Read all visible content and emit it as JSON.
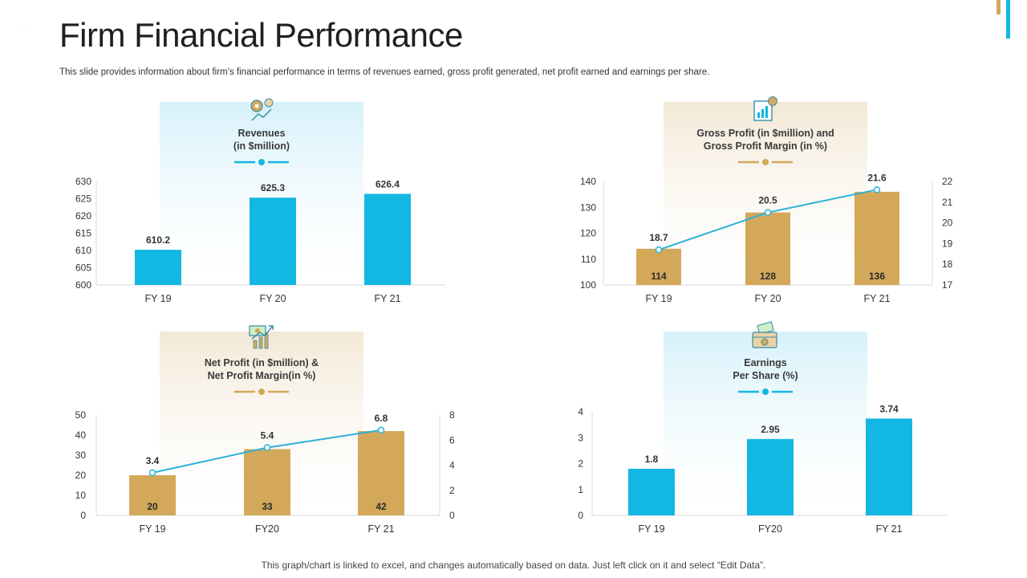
{
  "slide": {
    "title": "Firm Financial Performance",
    "subtitle": "This slide provides information about firm’s financial performance in terms of revenues earned, gross profit generated, net profit earned and earnings per share.",
    "footer": "This graph/chart is linked to excel, and changes automatically based on data. Just left click on it and select “Edit Data”."
  },
  "colors": {
    "blue": "#12b7e2",
    "gold": "#d4a85a",
    "line": "#2bb2d8",
    "axis": "#d9d9d9",
    "text": "#333333",
    "blue_band": "#d6f1fa",
    "gold_band": "#f3e8d6"
  },
  "icons": [
    "revenue-icon",
    "gross-profit-icon",
    "net-profit-icon",
    "earnings-icon"
  ],
  "chart_data": [
    {
      "id": "revenues",
      "type": "bar",
      "title_lines": [
        "Revenues",
        "(in $million)"
      ],
      "categories": [
        "FY 19",
        "FY 20",
        "FY 21"
      ],
      "values": [
        610.2,
        625.3,
        626.4
      ],
      "value_labels": [
        "610.2",
        "625.3",
        "626.4"
      ],
      "ylim": [
        600,
        630
      ],
      "yticks": [
        "600",
        "605",
        "610",
        "615",
        "620",
        "625",
        "630"
      ],
      "bar_color": "blue"
    },
    {
      "id": "gross-profit",
      "type": "bar+line",
      "title_lines": [
        "Gross  Profit (in $million) and",
        "Gross  Profit Margin (in %)"
      ],
      "categories": [
        "FY 19",
        "FY 20",
        "FY 21"
      ],
      "values": [
        114,
        128,
        136
      ],
      "value_labels": [
        "114",
        "128",
        "136"
      ],
      "ylim": [
        100,
        140
      ],
      "yticks": [
        "100",
        "110",
        "120",
        "130",
        "140"
      ],
      "line_values": [
        18.7,
        20.5,
        21.6
      ],
      "line_labels": [
        "18.7",
        "20.5",
        "21.6"
      ],
      "y2lim": [
        17,
        22
      ],
      "y2ticks": [
        "17",
        "18",
        "19",
        "20",
        "21",
        "22"
      ],
      "bar_color": "gold"
    },
    {
      "id": "net-profit",
      "type": "bar+line",
      "title_lines": [
        "Net Profit (in $million) &",
        "Net Profit Margin(in %)"
      ],
      "categories": [
        "FY 19",
        "FY20",
        "FY 21"
      ],
      "values": [
        20,
        33,
        42
      ],
      "value_labels": [
        "20",
        "33",
        "42"
      ],
      "ylim": [
        0,
        50
      ],
      "yticks": [
        "0",
        "10",
        "20",
        "30",
        "40",
        "50"
      ],
      "line_values": [
        3.4,
        5.4,
        6.8
      ],
      "line_labels": [
        "3.4",
        "5.4",
        "6.8"
      ],
      "y2lim": [
        0,
        8
      ],
      "y2ticks": [
        "0",
        "2",
        "4",
        "6",
        "8"
      ],
      "bar_color": "gold"
    },
    {
      "id": "eps",
      "type": "bar",
      "title_lines": [
        "Earnings",
        "Per Share (%)"
      ],
      "categories": [
        "FY 19",
        "FY20",
        "FY 21"
      ],
      "values": [
        1.8,
        2.95,
        3.74
      ],
      "value_labels": [
        "1.8",
        "2.95",
        "3.74"
      ],
      "ylim": [
        0,
        4
      ],
      "yticks": [
        "0",
        "1",
        "2",
        "3",
        "4"
      ],
      "bar_color": "blue"
    }
  ]
}
